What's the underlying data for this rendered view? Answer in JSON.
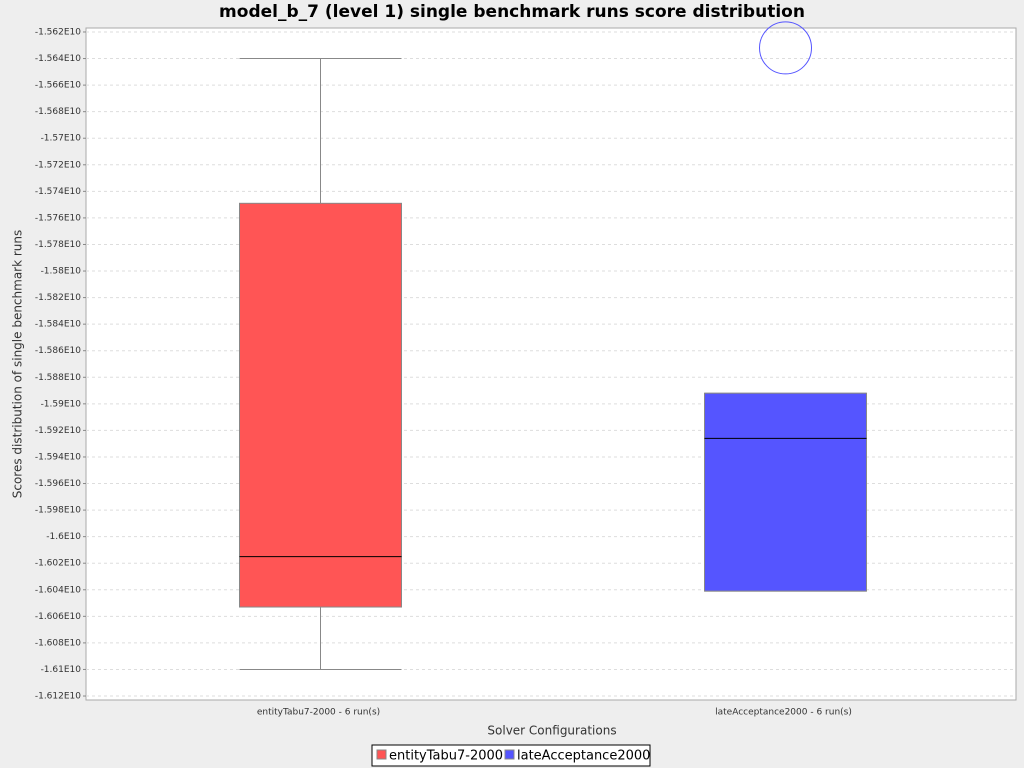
{
  "chart_data": {
    "type": "box",
    "title": "model_b_7 (level 1) single benchmark runs score distribution",
    "xlabel": "Solver Configurations",
    "ylabel": "Scores distribution of single benchmark runs",
    "categories": [
      "entityTabu7-2000 - 6 run(s)",
      "lateAcceptance2000 - 6 run(s)"
    ],
    "series": [
      {
        "name": "entityTabu7-2000",
        "color": "#ff5555",
        "min": -16100000000,
        "q1": -16053000000,
        "median": -16015000000,
        "q3": -15749000000,
        "max": -15640000000
      },
      {
        "name": "lateAcceptance2000",
        "color": "#5555ff",
        "min": -16041000000,
        "q1": -16041000000,
        "median": -15926000000,
        "q3": -15892000000,
        "max": -15892000000,
        "outliers": [
          -15632000000
        ]
      }
    ],
    "ylim": [
      -16123000000,
      -15617000000
    ],
    "yticks": [
      {
        "value": -15620000000,
        "label": "-1.562E10"
      },
      {
        "value": -15640000000,
        "label": "-1.564E10"
      },
      {
        "value": -15660000000,
        "label": "-1.566E10"
      },
      {
        "value": -15680000000,
        "label": "-1.568E10"
      },
      {
        "value": -15700000000,
        "label": "-1.57E10"
      },
      {
        "value": -15720000000,
        "label": "-1.572E10"
      },
      {
        "value": -15740000000,
        "label": "-1.574E10"
      },
      {
        "value": -15760000000,
        "label": "-1.576E10"
      },
      {
        "value": -15780000000,
        "label": "-1.578E10"
      },
      {
        "value": -15800000000,
        "label": "-1.58E10"
      },
      {
        "value": -15820000000,
        "label": "-1.582E10"
      },
      {
        "value": -15840000000,
        "label": "-1.584E10"
      },
      {
        "value": -15860000000,
        "label": "-1.586E10"
      },
      {
        "value": -15880000000,
        "label": "-1.588E10"
      },
      {
        "value": -15900000000,
        "label": "-1.59E10"
      },
      {
        "value": -15920000000,
        "label": "-1.592E10"
      },
      {
        "value": -15940000000,
        "label": "-1.594E10"
      },
      {
        "value": -15960000000,
        "label": "-1.596E10"
      },
      {
        "value": -15980000000,
        "label": "-1.598E10"
      },
      {
        "value": -16000000000,
        "label": "-1.6E10"
      },
      {
        "value": -16020000000,
        "label": "-1.602E10"
      },
      {
        "value": -16040000000,
        "label": "-1.604E10"
      },
      {
        "value": -16060000000,
        "label": "-1.606E10"
      },
      {
        "value": -16080000000,
        "label": "-1.608E10"
      },
      {
        "value": -16100000000,
        "label": "-1.61E10"
      },
      {
        "value": -16120000000,
        "label": "-1.612E10"
      }
    ],
    "grid": true
  }
}
